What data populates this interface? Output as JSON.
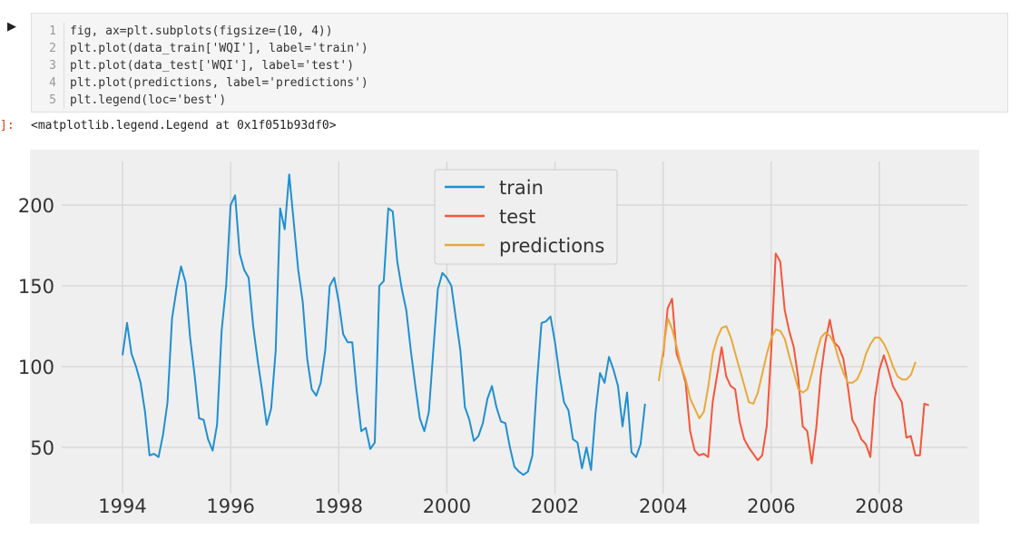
{
  "notebook": {
    "run_glyph": "▶",
    "code_lines": [
      {
        "num": "1",
        "text": "fig, ax=plt.subplots(figsize=(10, 4))"
      },
      {
        "num": "2",
        "text": "plt.plot(data_train['WQI'], label='train')"
      },
      {
        "num": "3",
        "text": "plt.plot(data_test['WQI'], label='test')"
      },
      {
        "num": "4",
        "text": "plt.plot(predictions, label='predictions')"
      },
      {
        "num": "5",
        "text": "plt.legend(loc='best')"
      }
    ],
    "output_prompt": "]:",
    "output_text": "<matplotlib.legend.Legend at 0x1f051b93df0>"
  },
  "chart_data": {
    "type": "line",
    "title": "",
    "xlabel": "",
    "ylabel": "",
    "grid": true,
    "legend_position": "top-center",
    "x_ticks": [
      "1994",
      "1996",
      "1998",
      "2000",
      "2002",
      "2004",
      "2006",
      "2008"
    ],
    "y_ticks": [
      50,
      100,
      150,
      200
    ],
    "xlim": [
      1993.8,
      2009.4
    ],
    "ylim": [
      25,
      230
    ],
    "colors": {
      "train": "#1f8fd1",
      "test": "#f6553a",
      "predictions": "#e8a93a",
      "plot_bg": "#efefef",
      "grid": "#d9d9d9"
    },
    "series": [
      {
        "name": "train",
        "start": 1994.0,
        "step": 0.08333,
        "values": [
          107,
          127,
          108,
          100,
          90,
          72,
          45,
          46,
          44,
          58,
          78,
          130,
          148,
          162,
          152,
          118,
          95,
          68,
          67,
          55,
          48,
          64,
          122,
          150,
          200,
          206,
          170,
          160,
          155,
          125,
          104,
          85,
          64,
          74,
          110,
          198,
          185,
          219,
          190,
          160,
          140,
          105,
          86,
          82,
          90,
          110,
          150,
          155,
          140,
          120,
          115,
          115,
          85,
          60,
          62,
          49,
          53,
          150,
          153,
          198,
          196,
          165,
          148,
          135,
          110,
          88,
          68,
          60,
          72,
          110,
          148,
          158,
          155,
          150,
          130,
          110,
          75,
          67,
          54,
          57,
          65,
          80,
          88,
          75,
          66,
          65,
          50,
          38,
          35,
          33,
          35,
          45,
          90,
          127,
          128,
          131,
          115,
          95,
          78,
          73,
          55,
          53,
          37,
          50,
          36,
          71,
          96,
          90,
          106,
          98,
          88,
          63,
          84,
          47,
          44,
          52,
          77
        ]
      },
      {
        "name": "test",
        "start": 2004.0,
        "step": 0.08333,
        "values": [
          106,
          136,
          142,
          108,
          100,
          90,
          60,
          48,
          45,
          46,
          44,
          78,
          95,
          112,
          94,
          88,
          86,
          66,
          55,
          50,
          46,
          42,
          45,
          63,
          110,
          170,
          165,
          135,
          122,
          112,
          93,
          63,
          60,
          40,
          62,
          95,
          115,
          129,
          115,
          112,
          105,
          88,
          67,
          62,
          55,
          52,
          44,
          80,
          98,
          107,
          98,
          88,
          83,
          78,
          56,
          57,
          45,
          45,
          77,
          76
        ]
      },
      {
        "name": "predictions",
        "start": 2003.92,
        "step": 0.08333,
        "values": [
          91,
          110,
          130,
          123,
          112,
          100,
          92,
          80,
          74,
          68,
          72,
          88,
          108,
          118,
          124,
          125,
          118,
          108,
          98,
          88,
          78,
          77,
          84,
          96,
          108,
          118,
          123,
          122,
          117,
          106,
          96,
          86,
          84,
          86,
          96,
          108,
          118,
          121,
          119,
          114,
          104,
          96,
          90,
          90,
          92,
          98,
          108,
          114,
          118,
          118,
          114,
          108,
          100,
          94,
          92,
          92,
          95,
          103
        ]
      }
    ]
  }
}
